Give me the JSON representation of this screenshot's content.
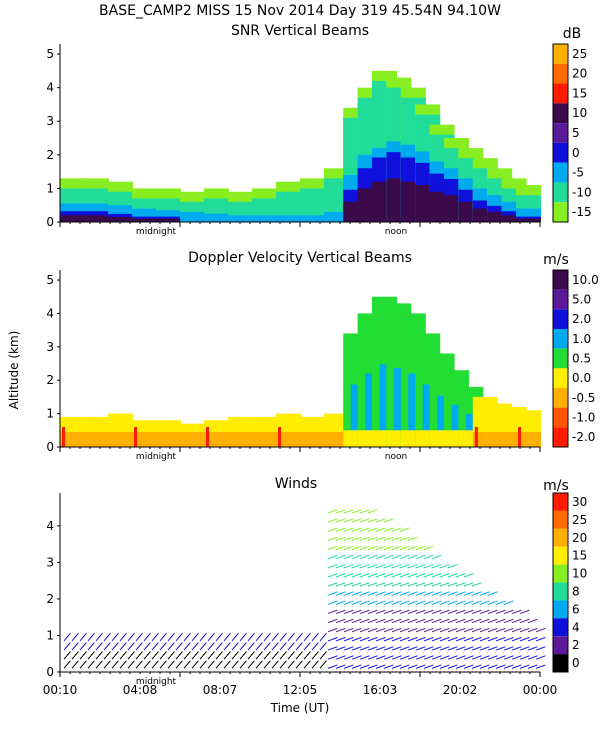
{
  "header": "BASE_CAMP2 MISS  15 Nov 2014 Day 319 45.54N  94.10W",
  "ylabel": "Altitude (km)",
  "xlabel": "Time (UT)",
  "chart_data": [
    {
      "type": "heatmap",
      "title": "SNR Vertical Beams",
      "unit": "dB",
      "yticks": [
        "0",
        "1",
        "2",
        "3",
        "4",
        "5"
      ],
      "ylim": [
        0,
        5.3
      ],
      "x_markers": [
        "midnight",
        "noon"
      ],
      "colorbar": {
        "labels": [
          "25",
          "20",
          "15",
          "10",
          "5",
          "0",
          "-5",
          "-10",
          "-15"
        ],
        "colors": [
          "#ffb000",
          "#ff6a00",
          "#ff1a00",
          "#3a0a4a",
          "#5a1a9a",
          "#1010dd",
          "#00aaee",
          "#22dd99",
          "#88ee22"
        ]
      },
      "columns": [
        {
          "x": 0.0,
          "top": 1.3,
          "layers": [
            0.2,
            0.55
          ]
        },
        {
          "x": 0.05,
          "top": 1.3,
          "layers": [
            0.2,
            0.55
          ]
        },
        {
          "x": 0.1,
          "top": 1.2,
          "layers": [
            0.15,
            0.5
          ]
        },
        {
          "x": 0.15,
          "top": 1.0,
          "layers": [
            0.1,
            0.4
          ]
        },
        {
          "x": 0.2,
          "top": 1.0,
          "layers": [
            0.1,
            0.35
          ]
        },
        {
          "x": 0.25,
          "top": 0.9,
          "layers": [
            0.0,
            0.3
          ]
        },
        {
          "x": 0.3,
          "top": 1.0,
          "layers": [
            0.0,
            0.25
          ]
        },
        {
          "x": 0.35,
          "top": 0.9,
          "layers": [
            0.0,
            0.2
          ]
        },
        {
          "x": 0.4,
          "top": 1.0,
          "layers": [
            0.0,
            0.2
          ]
        },
        {
          "x": 0.45,
          "top": 1.2,
          "layers": [
            0.0,
            0.2
          ]
        },
        {
          "x": 0.5,
          "top": 1.3,
          "layers": [
            0.0,
            0.2
          ]
        },
        {
          "x": 0.55,
          "top": 1.6,
          "layers": [
            0.0,
            0.3
          ]
        },
        {
          "x": 0.59,
          "top": 3.4,
          "layers": [
            0.6,
            1.4
          ]
        },
        {
          "x": 0.62,
          "top": 4.0,
          "layers": [
            1.0,
            2.0
          ]
        },
        {
          "x": 0.65,
          "top": 4.5,
          "layers": [
            1.2,
            2.2
          ]
        },
        {
          "x": 0.68,
          "top": 4.3,
          "layers": [
            1.3,
            2.4
          ]
        },
        {
          "x": 0.71,
          "top": 4.0,
          "layers": [
            1.2,
            2.3
          ]
        },
        {
          "x": 0.74,
          "top": 3.5,
          "layers": [
            1.1,
            2.1
          ]
        },
        {
          "x": 0.77,
          "top": 2.9,
          "layers": [
            0.9,
            1.8
          ]
        },
        {
          "x": 0.8,
          "top": 2.5,
          "layers": [
            0.8,
            1.6
          ]
        },
        {
          "x": 0.83,
          "top": 2.2,
          "layers": [
            0.6,
            1.3
          ]
        },
        {
          "x": 0.86,
          "top": 1.9,
          "layers": [
            0.4,
            1.0
          ]
        },
        {
          "x": 0.89,
          "top": 1.6,
          "layers": [
            0.3,
            0.8
          ]
        },
        {
          "x": 0.92,
          "top": 1.3,
          "layers": [
            0.2,
            0.6
          ]
        },
        {
          "x": 0.95,
          "top": 1.1,
          "layers": [
            0.1,
            0.4
          ]
        }
      ]
    },
    {
      "type": "heatmap",
      "title": "Doppler Velocity Vertical Beams",
      "unit": "m/s",
      "yticks": [
        "0",
        "1",
        "2",
        "3",
        "4",
        "5"
      ],
      "ylim": [
        0,
        5.3
      ],
      "x_markers": [
        "midnight",
        "noon"
      ],
      "colorbar": {
        "labels": [
          "10.0",
          "5.0",
          "2.0",
          "1.0",
          "0.5",
          "0.0",
          "-0.5",
          "-1.0",
          "-2.0"
        ],
        "colors": [
          "#3a0a4a",
          "#5a1a9a",
          "#1010dd",
          "#00aaee",
          "#22dd33",
          "#ffee00",
          "#ffb000",
          "#ff5500",
          "#ff1a00"
        ]
      },
      "columns": [
        {
          "x": 0.0,
          "top": 0.9
        },
        {
          "x": 0.05,
          "top": 0.9
        },
        {
          "x": 0.1,
          "top": 1.0
        },
        {
          "x": 0.15,
          "top": 0.8
        },
        {
          "x": 0.2,
          "top": 0.8
        },
        {
          "x": 0.25,
          "top": 0.7
        },
        {
          "x": 0.3,
          "top": 0.8
        },
        {
          "x": 0.35,
          "top": 0.9
        },
        {
          "x": 0.4,
          "top": 0.9
        },
        {
          "x": 0.45,
          "top": 1.0
        },
        {
          "x": 0.5,
          "top": 0.9
        },
        {
          "x": 0.55,
          "top": 1.0
        },
        {
          "x": 0.59,
          "top": 3.4
        },
        {
          "x": 0.62,
          "top": 4.0
        },
        {
          "x": 0.65,
          "top": 4.5
        },
        {
          "x": 0.68,
          "top": 4.3
        },
        {
          "x": 0.71,
          "top": 4.0
        },
        {
          "x": 0.74,
          "top": 3.4
        },
        {
          "x": 0.77,
          "top": 2.8
        },
        {
          "x": 0.8,
          "top": 2.3
        },
        {
          "x": 0.83,
          "top": 1.8
        },
        {
          "x": 0.86,
          "top": 1.5
        },
        {
          "x": 0.89,
          "top": 1.3
        },
        {
          "x": 0.92,
          "top": 1.2
        },
        {
          "x": 0.95,
          "top": 1.1
        }
      ]
    },
    {
      "type": "barbs",
      "title": "Winds",
      "unit": "m/s",
      "yticks": [
        "0",
        "1",
        "2",
        "3",
        "4"
      ],
      "ylim": [
        0,
        4.9
      ],
      "x_markers": [
        "midnight"
      ],
      "xticks": [
        "00:10",
        "04:08",
        "08:07",
        "12:05",
        "16:03",
        "20:02",
        "00:00"
      ],
      "colorbar": {
        "labels": [
          "30",
          "25",
          "20",
          "15",
          "10",
          "8",
          "6",
          "4",
          "2",
          "0"
        ],
        "colors": [
          "#ff1a00",
          "#ff6a00",
          "#ffb000",
          "#ffee00",
          "#88ee22",
          "#22dd99",
          "#00aaee",
          "#1010dd",
          "#5a1a9a",
          "#000000"
        ]
      }
    }
  ]
}
